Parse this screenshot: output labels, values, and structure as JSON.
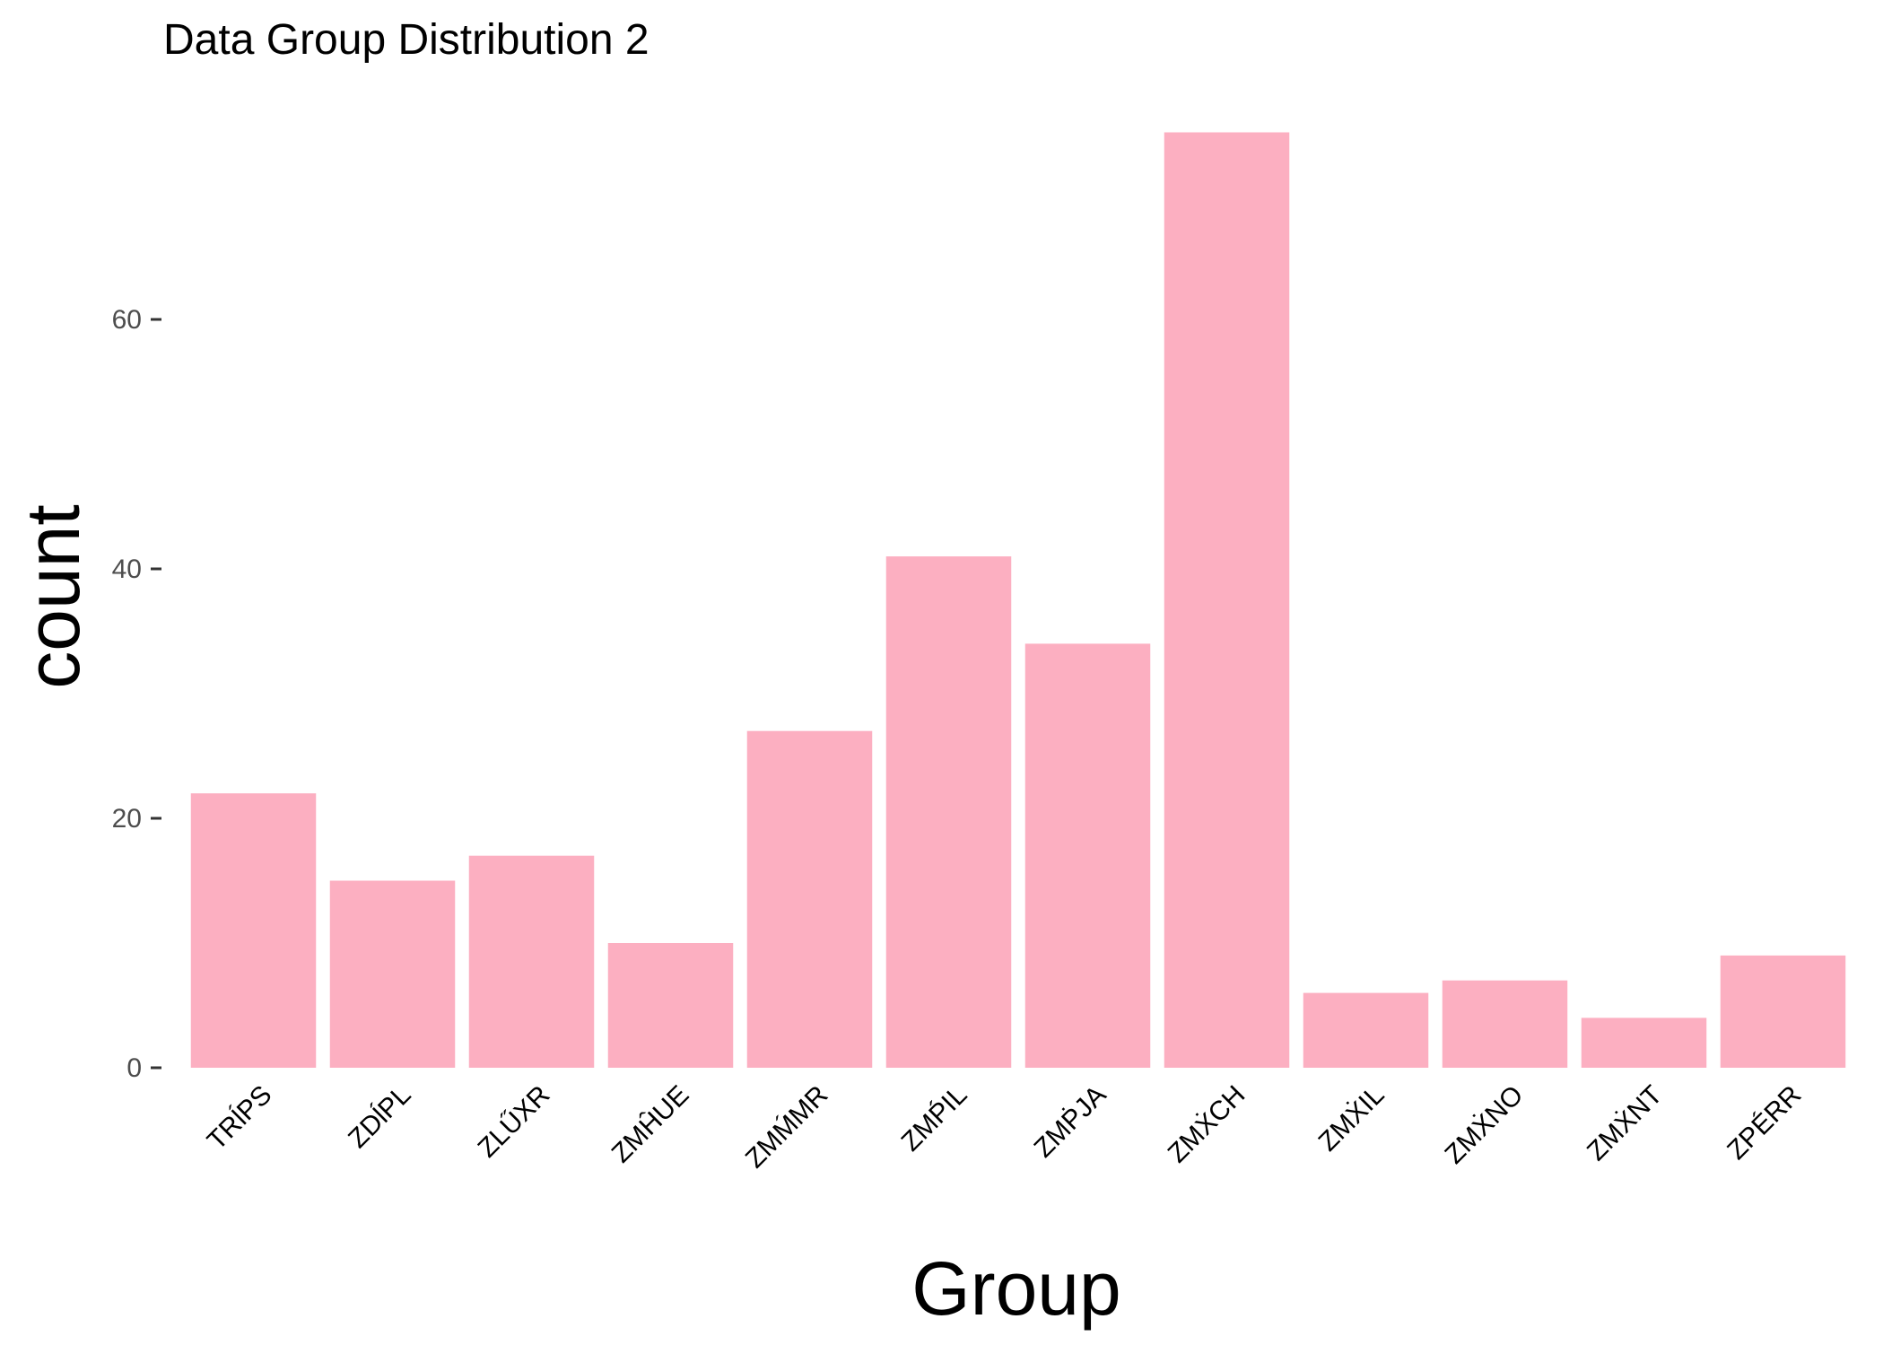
{
  "chart_data": {
    "type": "bar",
    "title": "Data Group Distribution 2",
    "xlabel": "Group",
    "ylabel": "count",
    "categories": [
      "TRĺPS",
      "ZDĺPL",
      "ZLŰXR",
      "ZMĤUE",
      "ZMḾMR",
      "ZMṔIL",
      "ZMṖJA",
      "ZMẊCH",
      "ZMẊIL",
      "ZMẊNO",
      "ZMẊNT",
      "ZPÉRR"
    ],
    "values": [
      22,
      15,
      17,
      10,
      27,
      41,
      34,
      75,
      6,
      7,
      4,
      9
    ],
    "yticks": [
      0,
      20,
      40,
      60
    ],
    "ylim": [
      0,
      78
    ],
    "grid": false,
    "legend": "none",
    "bar_color": "#fcafc1",
    "axis_tick_color": "#333333"
  }
}
